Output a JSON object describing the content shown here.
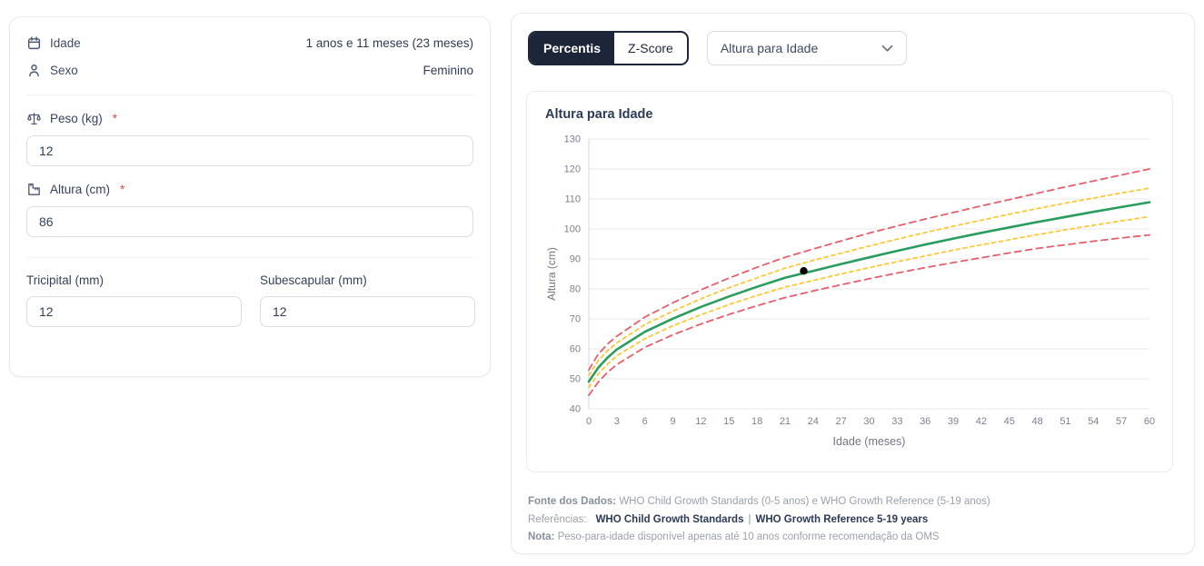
{
  "patient_panel": {
    "rows": {
      "idade": {
        "label": "Idade",
        "value": "1 anos e 11 meses (23 meses)"
      },
      "sexo": {
        "label": "Sexo",
        "value": "Feminino"
      }
    },
    "fields": {
      "peso": {
        "label": "Peso (kg)",
        "required_mark": "*",
        "value": "12"
      },
      "altura": {
        "label": "Altura (cm)",
        "required_mark": "*",
        "value": "86"
      },
      "tricipital": {
        "label": "Tricipital (mm)",
        "value": "12"
      },
      "subescapular": {
        "label": "Subescapular (mm)",
        "value": "12"
      }
    }
  },
  "controls": {
    "tabs": [
      {
        "label": "Percentis",
        "active": true
      },
      {
        "label": "Z-Score",
        "active": false
      }
    ],
    "chart_select": {
      "value": "Altura para Idade"
    }
  },
  "chart_card": {
    "title": "Altura para Idade"
  },
  "chart_data": {
    "type": "line",
    "title": "Altura para Idade",
    "xlabel": "Idade (meses)",
    "ylabel": "Altura (cm)",
    "xlim": [
      0,
      60
    ],
    "ylim": [
      40,
      130
    ],
    "x_ticks": [
      0,
      3,
      6,
      9,
      12,
      15,
      18,
      21,
      24,
      27,
      30,
      33,
      36,
      39,
      42,
      45,
      48,
      51,
      54,
      57,
      60
    ],
    "y_ticks": [
      40,
      50,
      60,
      70,
      80,
      90,
      100,
      110,
      120,
      130
    ],
    "grid": "horizontal-only",
    "legend_position": "none",
    "x": [
      0,
      1,
      2,
      3,
      6,
      9,
      12,
      15,
      18,
      21,
      24,
      27,
      30,
      33,
      36,
      39,
      42,
      45,
      48,
      51,
      54,
      57,
      60
    ],
    "series": [
      {
        "name": "percentile-upper-red-dashed",
        "color": "#e85d6b",
        "dash": "7 5",
        "width": 1.8,
        "values": [
          53.0,
          58.2,
          61.6,
          64.2,
          70.6,
          75.4,
          79.7,
          83.6,
          87.2,
          90.5,
          93.3,
          96.0,
          98.6,
          101.0,
          103.3,
          105.5,
          107.7,
          109.8,
          111.9,
          114.0,
          116.0,
          118.0,
          120.0
        ]
      },
      {
        "name": "percentile-upper-yellow-dashed",
        "color": "#fdc835",
        "dash": "4 4",
        "width": 1.8,
        "values": [
          51.1,
          56.1,
          59.4,
          62.0,
          68.1,
          72.6,
          76.7,
          80.4,
          83.7,
          86.9,
          89.5,
          91.9,
          94.3,
          96.6,
          98.8,
          100.9,
          102.9,
          104.9,
          106.8,
          108.6,
          110.3,
          112.0,
          113.6
        ]
      },
      {
        "name": "median-green-solid",
        "color": "#2a9d5e",
        "dash": null,
        "width": 2.6,
        "values": [
          49.1,
          53.7,
          57.1,
          59.8,
          65.7,
          70.1,
          74.0,
          77.5,
          80.7,
          83.7,
          86.0,
          88.3,
          90.5,
          92.7,
          94.8,
          96.8,
          98.7,
          100.5,
          102.3,
          104.0,
          105.7,
          107.3,
          108.9
        ]
      },
      {
        "name": "percentile-lower-yellow-dashed",
        "color": "#fdc835",
        "dash": "4 4",
        "width": 1.8,
        "values": [
          47.2,
          51.5,
          54.9,
          57.7,
          63.4,
          67.7,
          71.4,
          74.8,
          77.8,
          80.6,
          82.8,
          85.0,
          87.1,
          89.1,
          91.0,
          92.9,
          94.7,
          96.4,
          98.1,
          99.7,
          101.2,
          102.7,
          104.1
        ]
      },
      {
        "name": "percentile-lower-red-dashed",
        "color": "#e85d6b",
        "dash": "7 5",
        "width": 1.8,
        "values": [
          44.5,
          48.9,
          52.2,
          54.8,
          60.5,
          64.7,
          68.3,
          71.5,
          74.4,
          77.1,
          79.3,
          81.4,
          83.4,
          85.3,
          87.1,
          88.8,
          90.4,
          92.0,
          93.5,
          94.7,
          95.9,
          97.0,
          98.0
        ]
      }
    ],
    "patient_point": {
      "x": 23,
      "y": 86,
      "color": "#000000"
    }
  },
  "footer": {
    "fonte": {
      "label": "Fonte dos Dados:",
      "text": " WHO Child Growth Standards (0-5 anos) e WHO Growth Reference (5-19 anos)"
    },
    "referencias": {
      "label": "Referências:",
      "links": [
        "WHO Child Growth Standards",
        "WHO Growth Reference 5-19 years"
      ],
      "separator": "|"
    },
    "nota": {
      "label": "Nota:",
      "text": " Peso-para-idade disponível apenas até 10 anos conforme recomendação da OMS"
    }
  },
  "theme": {
    "accent_dark": "#1d2639",
    "chart_green": "#2a9d5e",
    "chart_yellow": "#fdc835",
    "chart_red": "#e85d6b",
    "required_red": "#e5484d",
    "grid_gray": "#e8e8e8",
    "tick_gray": "#7b8190"
  }
}
